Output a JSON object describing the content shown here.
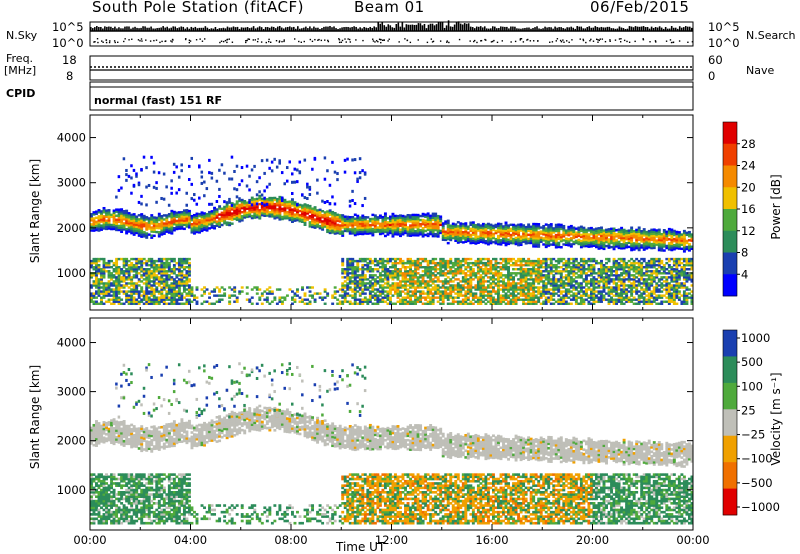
{
  "header": {
    "station": "South Pole Station (fitACF)",
    "beam": "Beam 01",
    "date": "06/Feb/2015"
  },
  "top_panels": {
    "nsky_label": "N.Sky",
    "nsearch_label": "N.Search",
    "nsky_ticks": [
      "10^5",
      "10^0"
    ],
    "nsearch_ticks": [
      "10^5",
      "10^0"
    ],
    "freq_label_1": "Freq.",
    "freq_label_2": "[MHz]",
    "freq_ticks": [
      "18",
      "8"
    ],
    "nave_label": "Nave",
    "nave_ticks": [
      "60",
      "0"
    ],
    "cpid_label": "CPID",
    "cpid_value": "normal (fast) 151 RF"
  },
  "colors": {
    "power_scale": [
      "#0000ff",
      "#1a3fb0",
      "#2c8c5a",
      "#4faa3c",
      "#f0c000",
      "#f58a00",
      "#f04000",
      "#e00000"
    ],
    "velocity_scale": [
      "#1a3fb0",
      "#2c8c5a",
      "#4faa3c",
      "#bfbfb8",
      "#f0a000",
      "#f07000",
      "#e00000"
    ]
  },
  "chart_data": [
    {
      "type": "heatmap",
      "name": "power",
      "ylabel": "Slant Range [km]",
      "ylim": [
        180,
        4500
      ],
      "yticks": [
        1000,
        2000,
        3000,
        4000
      ],
      "colorbar_label": "Power [dB]",
      "colorbar_ticks": [
        4,
        8,
        12,
        16,
        20,
        24,
        28
      ],
      "colorbar_range": [
        0,
        32
      ]
    },
    {
      "type": "heatmap",
      "name": "velocity",
      "ylabel": "Slant Range [km]",
      "ylim": [
        180,
        4500
      ],
      "yticks": [
        1000,
        2000,
        3000,
        4000
      ],
      "colorbar_label": "Velocity [m s⁻¹]",
      "colorbar_ticks": [
        "1000",
        "500",
        "100",
        "25",
        "−25",
        "−100",
        "−500",
        "−1000"
      ],
      "xlabel": "Time UT",
      "xticks": [
        "00:00",
        "04:00",
        "08:00",
        "12:00",
        "16:00",
        "20:00",
        "00:00"
      ],
      "xlim_hours": [
        0,
        24
      ]
    }
  ]
}
